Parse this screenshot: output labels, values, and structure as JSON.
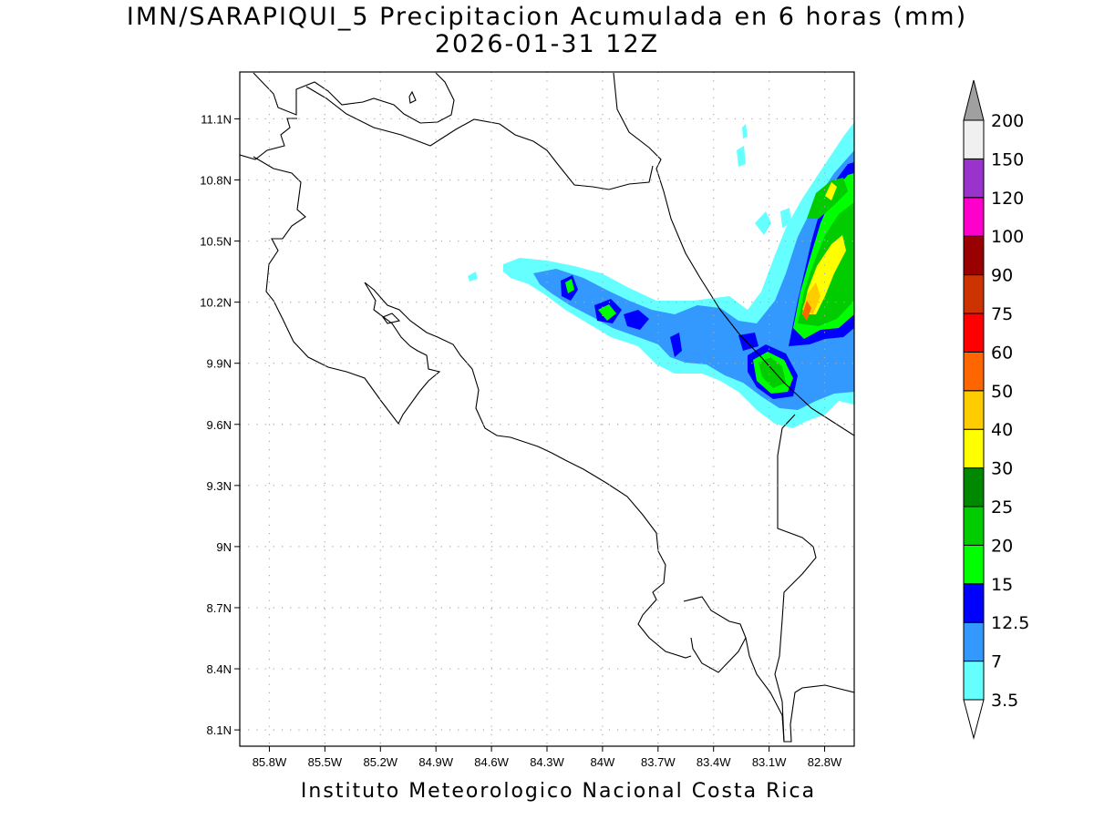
{
  "title": {
    "line1": "IMN/SARAPIQUI_5 Precipitacion Acumulada en 6 horas (mm)",
    "line2": "2026-01-31 12Z"
  },
  "footer": "Instituto Meteorologico Nacional Costa Rica",
  "map": {
    "lon_range": [
      -85.96,
      -82.64
    ],
    "lat_range": [
      8.02,
      11.33
    ],
    "grid": true,
    "lon_ticks": [
      {
        "value": -85.8,
        "label": "85.8W"
      },
      {
        "value": -85.5,
        "label": "85.5W"
      },
      {
        "value": -85.2,
        "label": "85.2W"
      },
      {
        "value": -84.9,
        "label": "84.9W"
      },
      {
        "value": -84.6,
        "label": "84.6W"
      },
      {
        "value": -84.3,
        "label": "84.3W"
      },
      {
        "value": -84.0,
        "label": "84W"
      },
      {
        "value": -83.7,
        "label": "83.7W"
      },
      {
        "value": -83.4,
        "label": "83.4W"
      },
      {
        "value": -83.1,
        "label": "83.1W"
      },
      {
        "value": -82.8,
        "label": "82.8W"
      }
    ],
    "lat_ticks": [
      {
        "value": 11.1,
        "label": "11.1N"
      },
      {
        "value": 10.8,
        "label": "10.8N"
      },
      {
        "value": 10.5,
        "label": "10.5N"
      },
      {
        "value": 10.2,
        "label": "10.2N"
      },
      {
        "value": 9.9,
        "label": "9.9N"
      },
      {
        "value": 9.6,
        "label": "9.6N"
      },
      {
        "value": 9.3,
        "label": "9.3N"
      },
      {
        "value": 9.0,
        "label": "9N"
      },
      {
        "value": 8.7,
        "label": "8.7N"
      },
      {
        "value": 8.4,
        "label": "8.4N"
      },
      {
        "value": 8.1,
        "label": "8.1N"
      }
    ]
  },
  "colorbar": {
    "labels": [
      "3.5",
      "7",
      "12.5",
      "15",
      "20",
      "25",
      "30",
      "40",
      "50",
      "60",
      "75",
      "90",
      "100",
      "120",
      "150",
      "200"
    ],
    "colors": [
      "#66ffff",
      "#3399ff",
      "#0000ff",
      "#00ff00",
      "#00cc00",
      "#008800",
      "#ffff00",
      "#ffcc00",
      "#ff6600",
      "#ff0000",
      "#cc3300",
      "#990000",
      "#ff00cc",
      "#9933cc",
      "#f0f0f0"
    ],
    "top_arrow_color": "#a0a0a0",
    "bottom_arrow_color": "#ffffff"
  },
  "precip_colors": {
    "c3_5": "#66ffff",
    "c7": "#3399ff",
    "c12_5": "#0000ff",
    "c15": "#00ff00",
    "c20": "#00cc00",
    "c25": "#008800",
    "c30": "#ffff00",
    "c40": "#ffcc00",
    "c50": "#ff6600"
  }
}
